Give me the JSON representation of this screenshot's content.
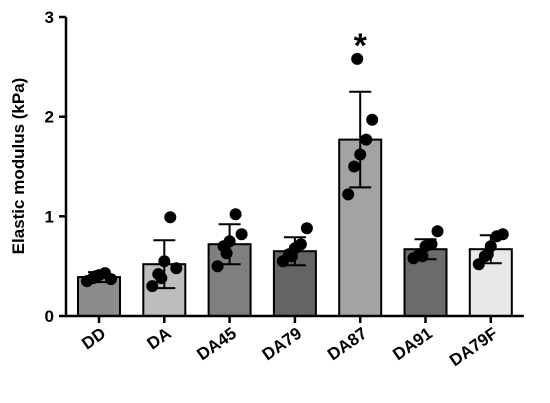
{
  "chart_data": {
    "type": "bar",
    "title": "",
    "xlabel": "",
    "ylabel": "Elastic modulus (kPa)",
    "ylim": [
      0,
      3
    ],
    "yticks": [
      0,
      1,
      2,
      3
    ],
    "grid": false,
    "legend": "none",
    "categories": [
      "DD",
      "DA",
      "DA45",
      "DA79",
      "DA87",
      "DA91",
      "DA79F"
    ],
    "values": [
      0.39,
      0.52,
      0.72,
      0.65,
      1.77,
      0.67,
      0.67
    ],
    "sd": [
      0.05,
      0.24,
      0.2,
      0.14,
      0.48,
      0.1,
      0.14
    ],
    "bar_colors": [
      "#8c8c8c",
      "#bdbdbd",
      "#7f7f7f",
      "#646464",
      "#a3a3a3",
      "#6b6b6b",
      "#e8e8e8"
    ],
    "points": [
      [
        0.35,
        0.38,
        0.41,
        0.43,
        0.37,
        0.4
      ],
      [
        0.3,
        0.42,
        0.55,
        0.99,
        0.48,
        0.38
      ],
      [
        0.5,
        0.7,
        0.75,
        1.02,
        0.82,
        0.63
      ],
      [
        0.55,
        0.62,
        0.68,
        0.72,
        0.88,
        0.6
      ],
      [
        1.22,
        1.5,
        1.62,
        1.77,
        1.97,
        2.58
      ],
      [
        0.58,
        0.62,
        0.7,
        0.72,
        0.85,
        0.6
      ],
      [
        0.52,
        0.6,
        0.7,
        0.8,
        0.82,
        0.62
      ]
    ],
    "annotations": [
      {
        "category": "DA87",
        "text": "*"
      }
    ]
  }
}
